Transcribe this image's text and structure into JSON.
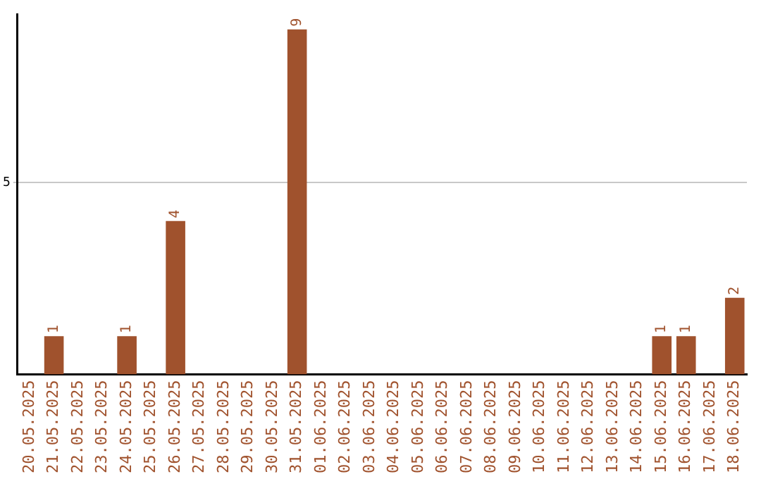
{
  "chart_data": {
    "type": "bar",
    "categories": [
      "20.05.2025",
      "21.05.2025",
      "22.05.2025",
      "23.05.2025",
      "24.05.2025",
      "25.05.2025",
      "26.05.2025",
      "27.05.2025",
      "28.05.2025",
      "29.05.2025",
      "30.05.2025",
      "31.05.2025",
      "01.06.2025",
      "02.06.2025",
      "03.06.2025",
      "04.06.2025",
      "05.06.2025",
      "06.06.2025",
      "07.06.2025",
      "08.06.2025",
      "09.06.2025",
      "10.06.2025",
      "11.06.2025",
      "12.06.2025",
      "13.06.2025",
      "14.06.2025",
      "15.06.2025",
      "16.06.2025",
      "17.06.2025",
      "18.06.2025"
    ],
    "values": [
      0,
      1,
      0,
      0,
      1,
      0,
      4,
      0,
      0,
      0,
      0,
      9,
      0,
      0,
      0,
      0,
      0,
      0,
      0,
      0,
      0,
      0,
      0,
      0,
      0,
      0,
      1,
      1,
      0,
      2
    ],
    "value_labels": [
      null,
      "1",
      null,
      null,
      "1",
      null,
      "4",
      null,
      null,
      null,
      null,
      "9",
      null,
      null,
      null,
      null,
      null,
      null,
      null,
      null,
      null,
      null,
      null,
      null,
      null,
      null,
      "1",
      "1",
      null,
      "2"
    ],
    "color": "#a0522d",
    "ylim": [
      0,
      9.4
    ],
    "yticks": [
      5
    ],
    "grid": "y",
    "legend": false
  }
}
